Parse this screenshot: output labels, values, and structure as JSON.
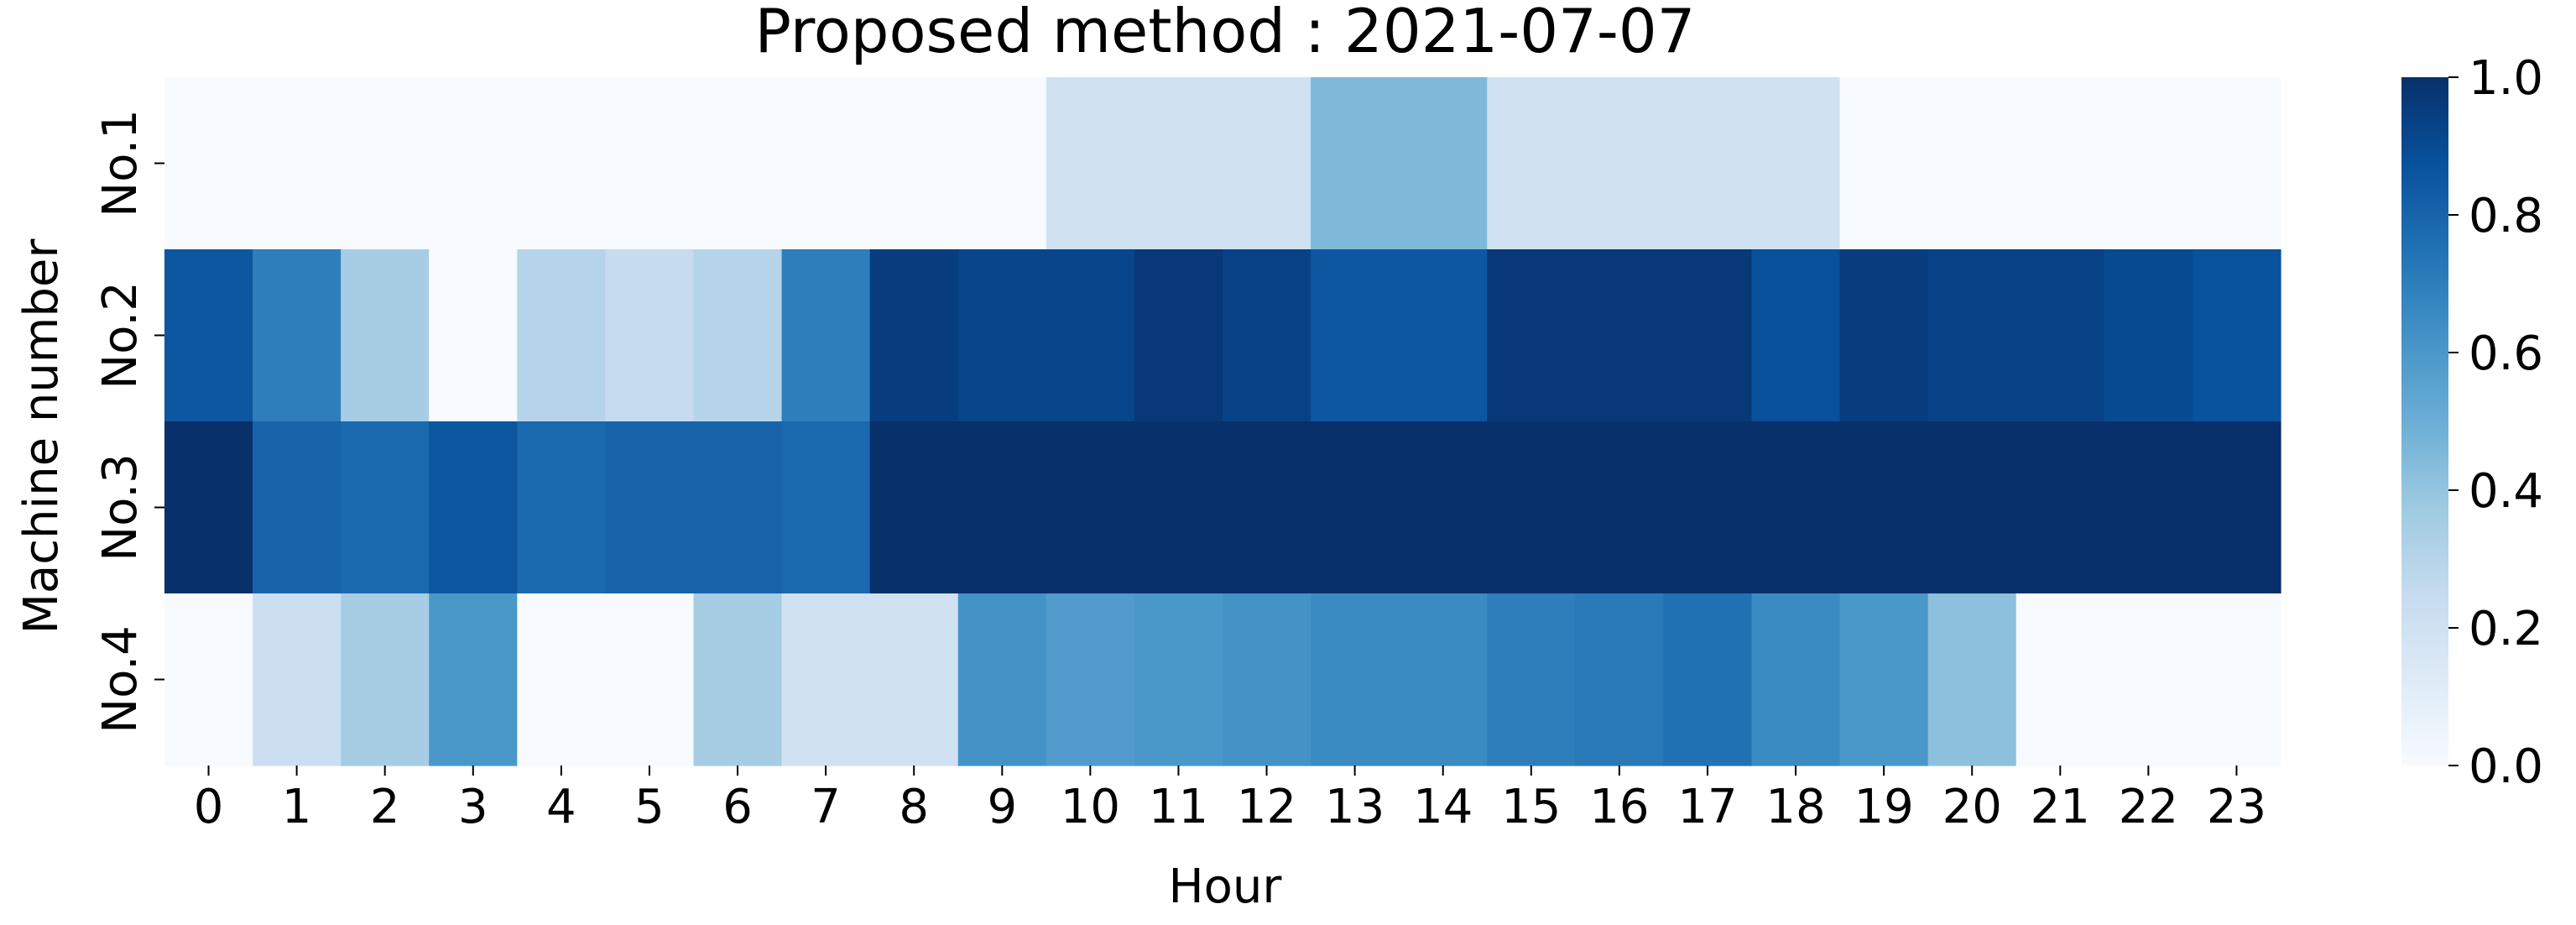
{
  "chart_data": {
    "type": "heatmap",
    "title": "Proposed method : 2021-07-07",
    "xlabel": "Hour",
    "ylabel": "Machine number",
    "x": [
      "0",
      "1",
      "2",
      "3",
      "4",
      "5",
      "6",
      "7",
      "8",
      "9",
      "10",
      "11",
      "12",
      "13",
      "14",
      "15",
      "16",
      "17",
      "18",
      "19",
      "20",
      "21",
      "22",
      "23"
    ],
    "y": [
      "No.1",
      "No.2",
      "No.3",
      "No.4"
    ],
    "values": [
      [
        0.0,
        0.0,
        0.0,
        0.0,
        0.0,
        0.0,
        0.0,
        0.0,
        0.0,
        0.0,
        0.2,
        0.2,
        0.2,
        0.45,
        0.45,
        0.2,
        0.2,
        0.2,
        0.2,
        0.0,
        0.0,
        0.0,
        0.0,
        0.0
      ],
      [
        0.85,
        0.7,
        0.35,
        0.0,
        0.3,
        0.25,
        0.3,
        0.7,
        0.95,
        0.92,
        0.92,
        0.97,
        0.93,
        0.85,
        0.85,
        0.97,
        0.97,
        0.97,
        0.88,
        0.95,
        0.93,
        0.93,
        0.9,
        0.87
      ],
      [
        1.0,
        0.8,
        0.78,
        0.85,
        0.78,
        0.8,
        0.8,
        0.78,
        1.0,
        1.0,
        1.0,
        1.0,
        1.0,
        1.0,
        1.0,
        1.0,
        1.0,
        1.0,
        1.0,
        1.0,
        1.0,
        1.0,
        1.0,
        1.0
      ],
      [
        0.0,
        0.22,
        0.35,
        0.6,
        0.0,
        0.0,
        0.35,
        0.2,
        0.2,
        0.62,
        0.58,
        0.6,
        0.62,
        0.65,
        0.65,
        0.7,
        0.72,
        0.75,
        0.65,
        0.6,
        0.42,
        0.0,
        0.0,
        0.0
      ]
    ],
    "colorbar": {
      "colormap": "Blues",
      "range": [
        0.0,
        1.0
      ],
      "ticks": [
        "0.0",
        "0.2",
        "0.4",
        "0.6",
        "0.8",
        "1.0"
      ]
    },
    "grid": false
  }
}
